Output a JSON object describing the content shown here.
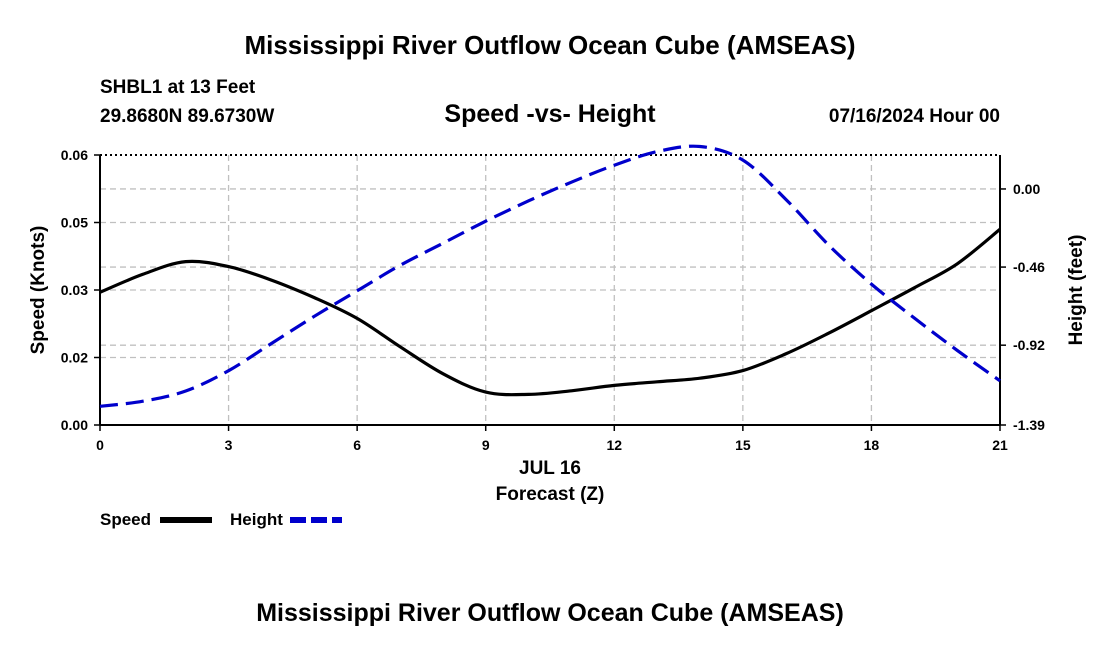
{
  "header": {
    "title": "Mississippi River Outflow Ocean Cube (AMSEAS)",
    "station": "SHBL1 at 13 Feet",
    "coords": "29.8680N  89.6730W",
    "datetime": "07/16/2024 Hour 00",
    "footer_title": "Mississippi River Outflow Ocean Cube (AMSEAS)"
  },
  "chart_data": {
    "type": "line",
    "title": "Speed -vs- Height",
    "xlabel": "Forecast (Z)",
    "date_label": "JUL 16",
    "ylabel": "Speed (Knots)",
    "y2label": "Height (feet)",
    "xlim": [
      0,
      21
    ],
    "ylim": [
      0,
      0.06
    ],
    "y2lim": [
      -1.39,
      0.2
    ],
    "x_ticks": [
      0,
      3,
      6,
      9,
      12,
      15,
      18,
      21
    ],
    "y_ticks": [
      "0.00",
      "0.02",
      "0.03",
      "0.05",
      "0.06"
    ],
    "y_tick_values": [
      0,
      0.015,
      0.03,
      0.045,
      0.06
    ],
    "y2_ticks": [
      "0.00",
      "-0.46",
      "-0.92",
      "-1.39"
    ],
    "y2_tick_values": [
      0,
      -0.46,
      -0.92,
      -1.39
    ],
    "grid": true,
    "series": [
      {
        "name": "Speed",
        "axis": "left",
        "color": "#000000",
        "dash": "solid",
        "x": [
          0,
          1,
          2,
          3,
          4,
          5,
          6,
          7,
          8,
          9,
          10,
          11,
          12,
          13,
          14,
          15,
          16,
          17,
          18,
          19,
          20,
          21
        ],
        "values": [
          0.0295,
          0.0335,
          0.0363,
          0.0352,
          0.0322,
          0.0283,
          0.0237,
          0.0174,
          0.0114,
          0.0073,
          0.0068,
          0.0076,
          0.0088,
          0.0096,
          0.0104,
          0.0121,
          0.0158,
          0.0204,
          0.0254,
          0.0305,
          0.0358,
          0.0435
        ]
      },
      {
        "name": "Height",
        "axis": "right",
        "color": "#0000cc",
        "dash": "dashed",
        "x": [
          0,
          1,
          2,
          3,
          4,
          5,
          6,
          7,
          8,
          9,
          10,
          11,
          12,
          13,
          14,
          15,
          16,
          17,
          18,
          19,
          20,
          21
        ],
        "values": [
          -1.28,
          -1.25,
          -1.19,
          -1.07,
          -0.91,
          -0.75,
          -0.6,
          -0.45,
          -0.32,
          -0.19,
          -0.07,
          0.04,
          0.14,
          0.22,
          0.25,
          0.17,
          -0.06,
          -0.33,
          -0.56,
          -0.76,
          -0.95,
          -1.13
        ]
      }
    ],
    "legend": [
      {
        "name": "Speed",
        "color": "#000000",
        "dash": "solid"
      },
      {
        "name": "Height",
        "color": "#0000cc",
        "dash": "dashed"
      }
    ]
  }
}
